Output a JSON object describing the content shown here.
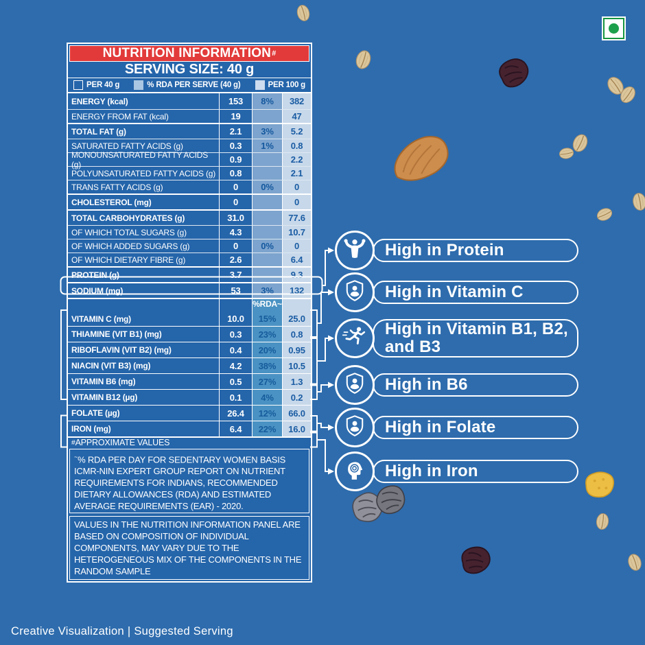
{
  "page": {
    "background_color": "#2e6cad",
    "footer_caption": "Creative Visualization  |  Suggested Serving"
  },
  "veg_mark": {
    "meaning": "vegetarian-mark",
    "color": "#1da04c"
  },
  "panel": {
    "title": {
      "text": "NUTRITION INFORMATION",
      "sup": "#"
    },
    "title_bg": "#e23a3a",
    "serving_size": "SERVING SIZE: 40 g",
    "legend": [
      {
        "label": "PER 40 g",
        "swatch": "outline"
      },
      {
        "label": "% RDA PER SERVE (40 g)",
        "swatch": "medium"
      },
      {
        "label": "PER 100 g",
        "swatch": "light"
      }
    ],
    "rda_header": "%RDA~",
    "rows": [
      {
        "label": "ENERGY (kcal)",
        "per40": "153",
        "rda": "8%",
        "per100": "382",
        "group": true,
        "sep": "none"
      },
      {
        "label": "ENERGY FROM FAT (kcal)",
        "per40": "19",
        "rda": "",
        "per100": "47",
        "group": false,
        "sep": "thin"
      },
      {
        "label": "TOTAL FAT (g)",
        "per40": "2.1",
        "rda": "3%",
        "per100": "5.2",
        "group": true,
        "sep": "heavy"
      },
      {
        "label": "SATURATED FATTY ACIDS (g)",
        "per40": "0.3",
        "rda": "1%",
        "per100": "0.8",
        "group": false,
        "sep": "thin"
      },
      {
        "label": "MONOUNSATURATED FATTY ACIDS (g)",
        "per40": "0.9",
        "rda": "",
        "per100": "2.2",
        "group": false,
        "sep": "thin"
      },
      {
        "label": "POLYUNSATURATED FATTY ACIDS (g)",
        "per40": "0.8",
        "rda": "",
        "per100": "2.1",
        "group": false,
        "sep": "thin"
      },
      {
        "label": "TRANS FATTY ACIDS (g)",
        "per40": "0",
        "rda": "0%",
        "per100": "0",
        "group": false,
        "sep": "thin"
      },
      {
        "label": "CHOLESTEROL (mg)",
        "per40": "0",
        "rda": "",
        "per100": "0",
        "group": true,
        "sep": "heavy"
      },
      {
        "label": "TOTAL CARBOHYDRATES (g)",
        "per40": "31.0",
        "rda": "",
        "per100": "77.6",
        "group": true,
        "sep": "heavy"
      },
      {
        "label": "OF WHICH TOTAL SUGARS (g)",
        "per40": "4.3",
        "rda": "",
        "per100": "10.7",
        "group": false,
        "sep": "thin"
      },
      {
        "label": "OF WHICH ADDED SUGARS (g)",
        "per40": "0",
        "rda": "0%",
        "per100": "0",
        "group": false,
        "sep": "thin"
      },
      {
        "label": "OF WHICH DIETARY FIBRE (g)",
        "per40": "2.6",
        "rda": "",
        "per100": "6.4",
        "group": false,
        "sep": "thin"
      },
      {
        "label": "PROTEIN (g)",
        "per40": "3.7",
        "rda": "",
        "per100": "9.3",
        "group": true,
        "sep": "heavy",
        "highlight": true
      },
      {
        "label": "SODIUM (mg)",
        "per40": "53",
        "rda": "3%",
        "per100": "132",
        "group": true,
        "sep": "heavy"
      },
      {
        "label": "VITAMIN C (mg)",
        "per40": "10.0",
        "rda": "15%",
        "per100": "25.0",
        "group": true,
        "sep": "heavy",
        "vit": true,
        "tall": true,
        "highlight": true
      },
      {
        "label": "THIAMINE (VIT B1) (mg)",
        "per40": "0.3",
        "rda": "23%",
        "per100": "0.8",
        "group": true,
        "sep": "mid",
        "vit": true
      },
      {
        "label": "RIBOFLAVIN (VIT B2) (mg)",
        "per40": "0.4",
        "rda": "20%",
        "per100": "0.95",
        "group": true,
        "sep": "mid",
        "vit": true
      },
      {
        "label": "NIACIN (VIT B3) (mg)",
        "per40": "4.2",
        "rda": "38%",
        "per100": "10.5",
        "group": true,
        "sep": "mid",
        "vit": true
      },
      {
        "label": "VITAMIN B6 (mg)",
        "per40": "0.5",
        "rda": "27%",
        "per100": "1.3",
        "group": true,
        "sep": "mid",
        "vit": true,
        "highlight": true
      },
      {
        "label": "VITAMIN B12 (µg)",
        "per40": "0.1",
        "rda": "4%",
        "per100": "0.2",
        "group": true,
        "sep": "mid",
        "vit": true
      },
      {
        "label": "FOLATE (µg)",
        "per40": "26.4",
        "rda": "12%",
        "per100": "66.0",
        "group": true,
        "sep": "mid",
        "vit": true,
        "highlight": true
      },
      {
        "label": "IRON (mg)",
        "per40": "6.4",
        "rda": "22%",
        "per100": "16.0",
        "group": true,
        "sep": "mid",
        "vit": true,
        "highlight": true
      }
    ],
    "approx_note": {
      "sup": "#",
      "text": "APPROXIMATE VALUES"
    },
    "footnotes": [
      {
        "sup": "~",
        "text": "% RDA PER DAY FOR SEDENTARY WOMEN BASIS ICMR-NIN EXPERT GROUP REPORT ON NUTRIENT REQUIREMENTS FOR INDIANS, RECOMMENDED DIETARY ALLOWANCES (RDA) AND ESTIMATED AVERAGE REQUIREMENTS (EAR) - 2020."
      },
      {
        "sup": "",
        "text": "VALUES IN THE NUTRITION INFORMATION PANEL ARE BASED ON COMPOSITION OF INDIVIDUAL COMPONENTS, MAY VARY DUE TO THE HETEROGENEOUS MIX OF THE COMPONENTS IN THE RANDOM SAMPLE"
      }
    ]
  },
  "callouts": [
    {
      "label": "High in Protein",
      "icon": "muscle-icon"
    },
    {
      "label": "High in Vitamin C",
      "icon": "shield-person-icon"
    },
    {
      "label": "High in Vitamin B1, B2, and B3",
      "icon": "runner-icon"
    },
    {
      "label": "High in B6",
      "icon": "shield-person-icon"
    },
    {
      "label": "High in Folate",
      "icon": "shield-person-icon"
    },
    {
      "label": "High in Iron",
      "icon": "head-gear-icon"
    }
  ],
  "decorations": [
    "oat-grain",
    "oat-grain",
    "raisin",
    "oat-grain",
    "oat-grain",
    "almond",
    "oat-grain",
    "oat-grain",
    "oat-grain",
    "oat-grain",
    "grey-raisins",
    "raisin",
    "cornflake",
    "oat-grain",
    "oat-grain"
  ]
}
